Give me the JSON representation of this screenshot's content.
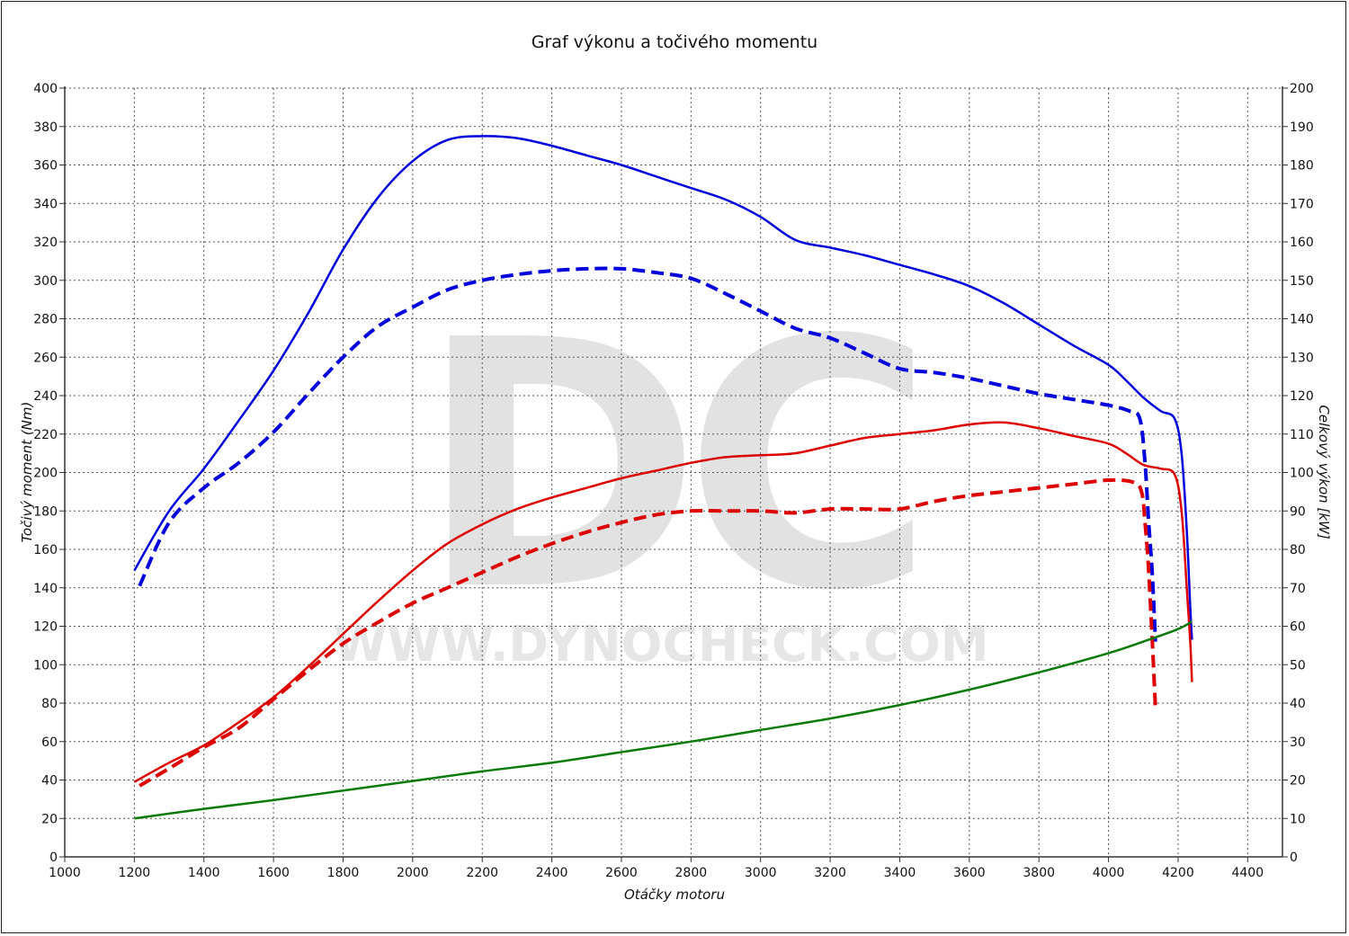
{
  "chart_data": {
    "type": "line",
    "title": "Graf výkonu a točivého momentu",
    "xlabel": "Otáčky motoru",
    "ylabel_left": "Točivý moment (Nm)",
    "ylabel_right": "Celkový výkon [kW]",
    "watermark": {
      "logo": "DC",
      "text": "WWW.DYNOCHECK.COM"
    },
    "xlim": [
      1000,
      4500
    ],
    "ylim_left": [
      0,
      400
    ],
    "ylim_right": [
      0,
      200
    ],
    "grid": true,
    "x_ticks": [
      1000,
      1200,
      1400,
      1600,
      1800,
      2000,
      2200,
      2400,
      2600,
      2800,
      3000,
      3200,
      3400,
      3600,
      3800,
      4000,
      4200,
      4400
    ],
    "y_left_ticks": [
      0,
      20,
      40,
      60,
      80,
      100,
      120,
      140,
      160,
      180,
      200,
      220,
      240,
      260,
      280,
      300,
      320,
      340,
      360,
      380,
      400
    ],
    "y_right_ticks": [
      0,
      10,
      20,
      30,
      40,
      50,
      60,
      70,
      80,
      90,
      100,
      110,
      120,
      130,
      140,
      150,
      160,
      170,
      180,
      190,
      200
    ],
    "series": [
      {
        "key": "torque-tuned",
        "axis": "left",
        "color": "#0000dd",
        "dash": false,
        "width": 2.5,
        "points": [
          [
            1200,
            149
          ],
          [
            1300,
            180
          ],
          [
            1400,
            202
          ],
          [
            1500,
            227
          ],
          [
            1600,
            253
          ],
          [
            1700,
            283
          ],
          [
            1800,
            316
          ],
          [
            1900,
            343
          ],
          [
            2000,
            362
          ],
          [
            2100,
            373
          ],
          [
            2200,
            375
          ],
          [
            2300,
            374
          ],
          [
            2400,
            370
          ],
          [
            2500,
            365
          ],
          [
            2600,
            360
          ],
          [
            2700,
            354
          ],
          [
            2800,
            348
          ],
          [
            2900,
            342
          ],
          [
            3000,
            333
          ],
          [
            3100,
            321
          ],
          [
            3200,
            317
          ],
          [
            3300,
            313
          ],
          [
            3400,
            308
          ],
          [
            3500,
            303
          ],
          [
            3600,
            297
          ],
          [
            3700,
            288
          ],
          [
            3800,
            277
          ],
          [
            3900,
            266
          ],
          [
            4000,
            256
          ],
          [
            4050,
            248
          ],
          [
            4100,
            239
          ],
          [
            4150,
            232
          ],
          [
            4190,
            228
          ],
          [
            4210,
            210
          ],
          [
            4225,
            170
          ],
          [
            4235,
            130
          ],
          [
            4240,
            113
          ]
        ]
      },
      {
        "key": "torque-stock",
        "axis": "left",
        "color": "#0000dd",
        "dash": true,
        "width": 4,
        "points": [
          [
            1215,
            141
          ],
          [
            1300,
            174
          ],
          [
            1400,
            192
          ],
          [
            1500,
            205
          ],
          [
            1600,
            221
          ],
          [
            1700,
            241
          ],
          [
            1800,
            260
          ],
          [
            1900,
            276
          ],
          [
            2000,
            286
          ],
          [
            2100,
            295
          ],
          [
            2200,
            300
          ],
          [
            2300,
            303
          ],
          [
            2400,
            305
          ],
          [
            2500,
            306
          ],
          [
            2600,
            306
          ],
          [
            2700,
            304
          ],
          [
            2800,
            301
          ],
          [
            2900,
            293
          ],
          [
            3000,
            284
          ],
          [
            3100,
            275
          ],
          [
            3200,
            270
          ],
          [
            3300,
            262
          ],
          [
            3400,
            254
          ],
          [
            3500,
            252
          ],
          [
            3600,
            249
          ],
          [
            3700,
            245
          ],
          [
            3800,
            241
          ],
          [
            3900,
            238
          ],
          [
            4000,
            235
          ],
          [
            4060,
            232
          ],
          [
            4090,
            228
          ],
          [
            4105,
            205
          ],
          [
            4115,
            175
          ],
          [
            4125,
            150
          ],
          [
            4135,
            112
          ]
        ]
      },
      {
        "key": "power-tuned",
        "axis": "right",
        "color": "#dd0000",
        "dash": false,
        "width": 2.5,
        "points": [
          [
            1200,
            19.5
          ],
          [
            1300,
            24.5
          ],
          [
            1400,
            29
          ],
          [
            1500,
            35
          ],
          [
            1600,
            41.5
          ],
          [
            1700,
            49.5
          ],
          [
            1800,
            58
          ],
          [
            1900,
            66.5
          ],
          [
            2000,
            74.5
          ],
          [
            2100,
            81.5
          ],
          [
            2200,
            86.5
          ],
          [
            2300,
            90.5
          ],
          [
            2400,
            93.5
          ],
          [
            2500,
            96
          ],
          [
            2600,
            98.5
          ],
          [
            2700,
            100.5
          ],
          [
            2800,
            102.5
          ],
          [
            2900,
            104
          ],
          [
            3000,
            104.5
          ],
          [
            3100,
            105
          ],
          [
            3200,
            107
          ],
          [
            3300,
            109
          ],
          [
            3400,
            110
          ],
          [
            3500,
            111
          ],
          [
            3600,
            112.5
          ],
          [
            3700,
            113
          ],
          [
            3800,
            111.5
          ],
          [
            3900,
            109.5
          ],
          [
            4000,
            107.5
          ],
          [
            4050,
            105
          ],
          [
            4100,
            102
          ],
          [
            4150,
            101
          ],
          [
            4190,
            99.5
          ],
          [
            4210,
            90
          ],
          [
            4225,
            70
          ],
          [
            4235,
            56
          ],
          [
            4240,
            45.5
          ]
        ]
      },
      {
        "key": "power-stock",
        "axis": "right",
        "color": "#dd0000",
        "dash": true,
        "width": 4,
        "points": [
          [
            1215,
            18.5
          ],
          [
            1300,
            23
          ],
          [
            1400,
            28.5
          ],
          [
            1500,
            33.5
          ],
          [
            1600,
            41
          ],
          [
            1700,
            48.5
          ],
          [
            1800,
            55.5
          ],
          [
            1900,
            61
          ],
          [
            2000,
            66
          ],
          [
            2100,
            70
          ],
          [
            2200,
            74
          ],
          [
            2300,
            78
          ],
          [
            2400,
            81.5
          ],
          [
            2500,
            84.5
          ],
          [
            2600,
            87
          ],
          [
            2700,
            89
          ],
          [
            2800,
            90
          ],
          [
            2900,
            90
          ],
          [
            3000,
            90
          ],
          [
            3100,
            89.5
          ],
          [
            3200,
            90.5
          ],
          [
            3300,
            90.5
          ],
          [
            3400,
            90.5
          ],
          [
            3500,
            92.5
          ],
          [
            3600,
            94
          ],
          [
            3700,
            95
          ],
          [
            3800,
            96
          ],
          [
            3900,
            97
          ],
          [
            4000,
            98
          ],
          [
            4070,
            97.5
          ],
          [
            4095,
            95
          ],
          [
            4105,
            87
          ],
          [
            4115,
            75
          ],
          [
            4125,
            58
          ],
          [
            4135,
            38.5
          ]
        ]
      },
      {
        "key": "loss-curve",
        "axis": "left",
        "color": "#0a7a0a",
        "dash": false,
        "width": 2.5,
        "points": [
          [
            1200,
            20
          ],
          [
            1400,
            25
          ],
          [
            1600,
            29.5
          ],
          [
            1800,
            34.5
          ],
          [
            2000,
            39.5
          ],
          [
            2200,
            44.5
          ],
          [
            2400,
            49
          ],
          [
            2600,
            54.5
          ],
          [
            2800,
            60
          ],
          [
            3000,
            66
          ],
          [
            3200,
            72
          ],
          [
            3400,
            79
          ],
          [
            3600,
            87
          ],
          [
            3800,
            96
          ],
          [
            4000,
            106
          ],
          [
            4100,
            112
          ],
          [
            4200,
            118.5
          ],
          [
            4240,
            122.5
          ]
        ]
      }
    ]
  }
}
